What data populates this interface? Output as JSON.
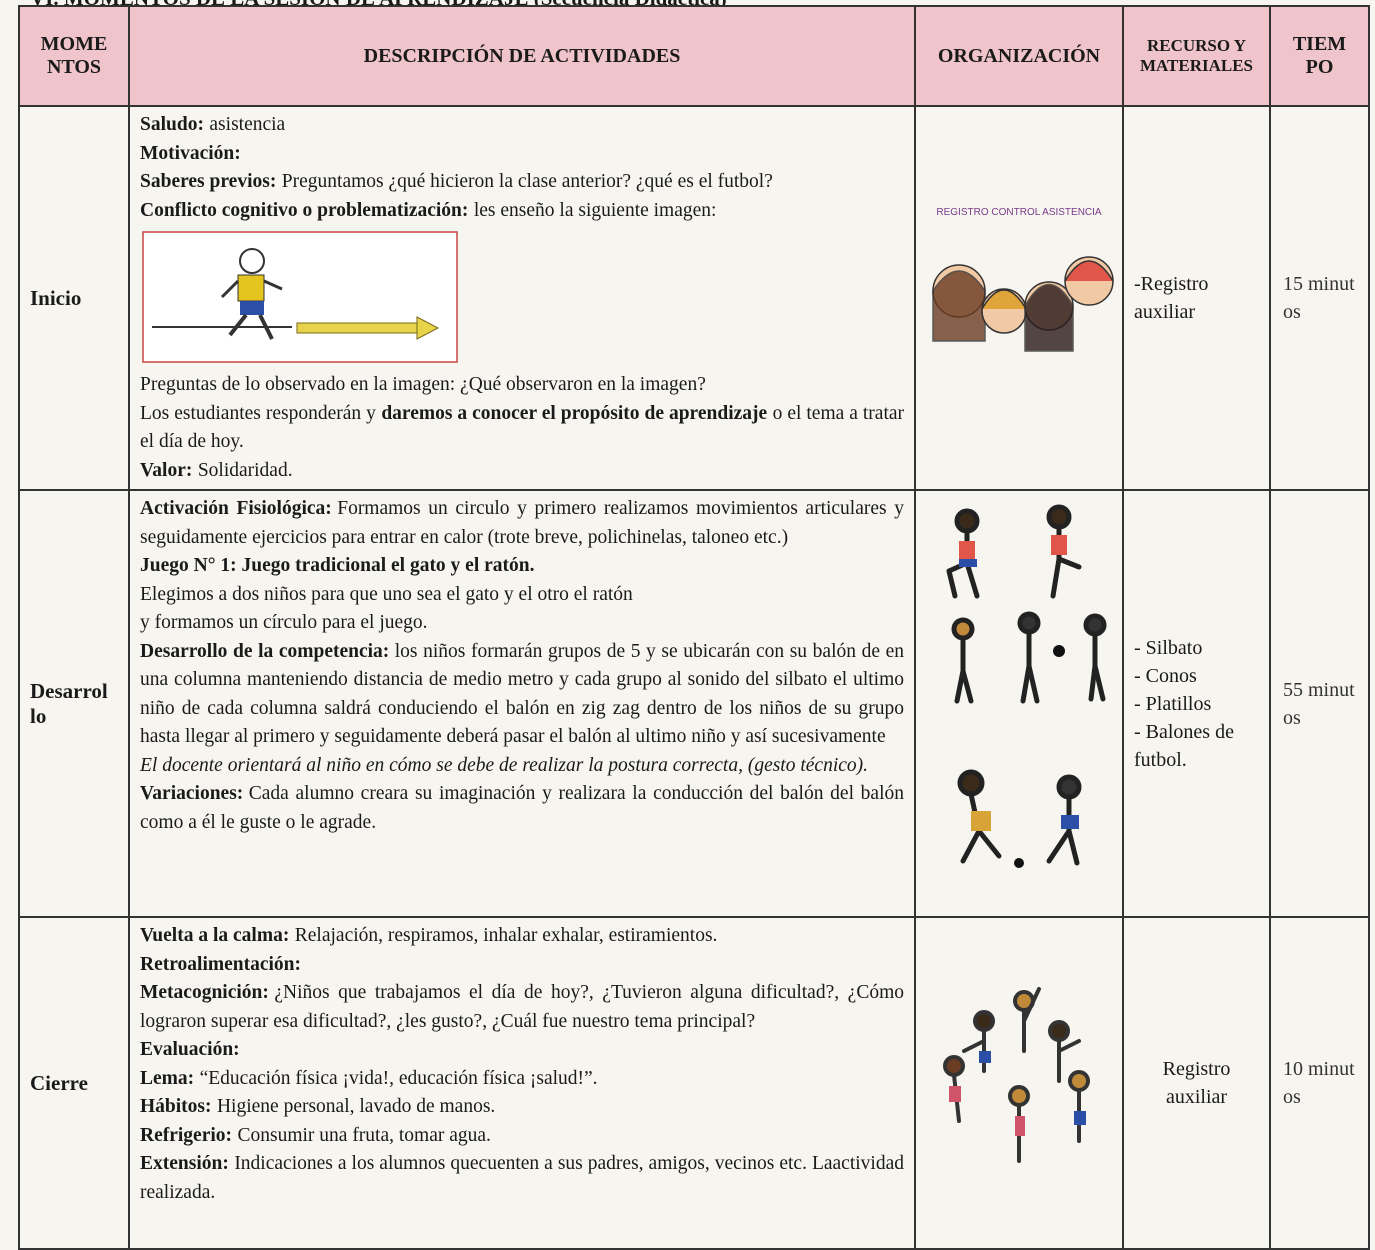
{
  "header": {
    "title": "VI. MOMENTOS DE LA SESIÓN DE APRENDIZAJE (Secuencia Didáctica)"
  },
  "table": {
    "columns": [
      "MOMENTOS",
      "DESCRIPCIÓN DE ACTIVIDADES",
      "ORGANIZACIÓN",
      "RECURSO Y MATERIALES",
      "TIEMPO"
    ],
    "rows": [
      {
        "moment": "Inicio",
        "before_image": [
          [
            {
              "bold": "Saludo:"
            },
            {
              "text": "asistencia"
            }
          ],
          [
            {
              "bold": "Motivación:"
            }
          ],
          [
            {
              "bold": "Saberes previos:"
            },
            {
              "text": "Preguntamos ¿qué hicieron la clase anterior? ¿qué es el futbol?"
            }
          ],
          [
            {
              "bold": "Conflicto cognitivo o problematización:"
            },
            {
              "text": "les enseño la siguiente imagen:"
            }
          ]
        ],
        "after_image": [
          [
            {
              "text": "Preguntas de lo observado en la imagen: ¿Qué observaron en la imagen?"
            }
          ],
          [
            {
              "text": "Los estudiantes responderán y"
            },
            {
              "bold": "daremos a conocer el propósito de aprendizaje"
            },
            {
              "text": "o el tema a tratar el día de hoy."
            }
          ],
          [
            {
              "bold": "Valor:"
            },
            {
              "text": "Solidaridad."
            }
          ]
        ],
        "organization_caption": "REGISTRO CONTROL ASISTENCIA",
        "resources": [
          "-Registro auxiliar"
        ],
        "time": "15 minutos"
      },
      {
        "moment": "Desarrollo",
        "paragraphs": [
          [
            {
              "bold": "Activación Fisiológica:"
            },
            {
              "text": "Formamos un circulo y primero realizamos movimientos articulares y seguidamente ejercicios para entrar en calor (trote breve, polichinelas, taloneo etc.)"
            }
          ],
          [
            {
              "bold": "Juego N° 1: Juego tradicional el gato y el ratón."
            }
          ],
          [
            {
              "text": "Elegimos a dos niños para que uno sea el gato y el otro el ratón"
            }
          ],
          [
            {
              "text": "y formamos un círculo para el juego."
            }
          ],
          [
            {
              "bold": "Desarrollo de la competencia:"
            },
            {
              "text": "los niños formarán grupos de 5 y se ubicarán con su balón de en una columna manteniendo distancia de medio metro y cada grupo al sonido del silbato el ultimo niño de cada columna saldrá conduciendo el balón en zig zag dentro de los niños de su grupo hasta llegar al primero y seguidamente deberá pasar el balón al ultimo niño y así sucesivamente"
            }
          ],
          [
            {
              "italic": "El docente orientará al niño en cómo se debe de realizar la postura correcta, (gesto técnico)."
            }
          ],
          [
            {
              "bold": "Variaciones:"
            },
            {
              "text": "Cada alumno creara su imaginación y realizara la conducción del balón del balón como a él le guste o le agrade."
            }
          ]
        ],
        "resources": [
          "- Silbato",
          "- Conos",
          "- Platillos",
          "- Balones de futbol."
        ],
        "time": "55 minutos"
      },
      {
        "moment": "Cierre",
        "paragraphs": [
          [
            {
              "bold": "Vuelta a la calma:"
            },
            {
              "text": "Relajación, respiramos, inhalar exhalar, estiramientos."
            }
          ],
          [
            {
              "bold": "Retroalimentación:"
            }
          ],
          [
            {
              "bold": "Metacognición:"
            },
            {
              "text": "¿Niños que trabajamos el día de hoy?, ¿Tuvieron alguna dificultad?, ¿Cómo lograron superar esa dificultad?, ¿les gusto?, ¿Cuál fue nuestro tema principal?"
            }
          ],
          [
            {
              "bold": "Evaluación:"
            }
          ],
          [
            {
              "bold": "Lema:"
            },
            {
              "text": "“Educación física ¡vida!, educación física ¡salud!”."
            }
          ],
          [
            {
              "bold": "Hábitos:"
            },
            {
              "text": "Higiene personal, lavado de manos."
            }
          ],
          [
            {
              "bold": "Refrigerio:"
            },
            {
              "text": "Consumir una fruta, tomar agua."
            }
          ],
          [
            {
              "bold": "Extensión:"
            },
            {
              "text": "Indicaciones a los alumnos quecuenten a sus padres, amigos, vecinos etc. Laactividad realizada."
            }
          ]
        ],
        "resources": [
          "Registro auxiliar"
        ],
        "time": "10 minutos"
      }
    ]
  }
}
